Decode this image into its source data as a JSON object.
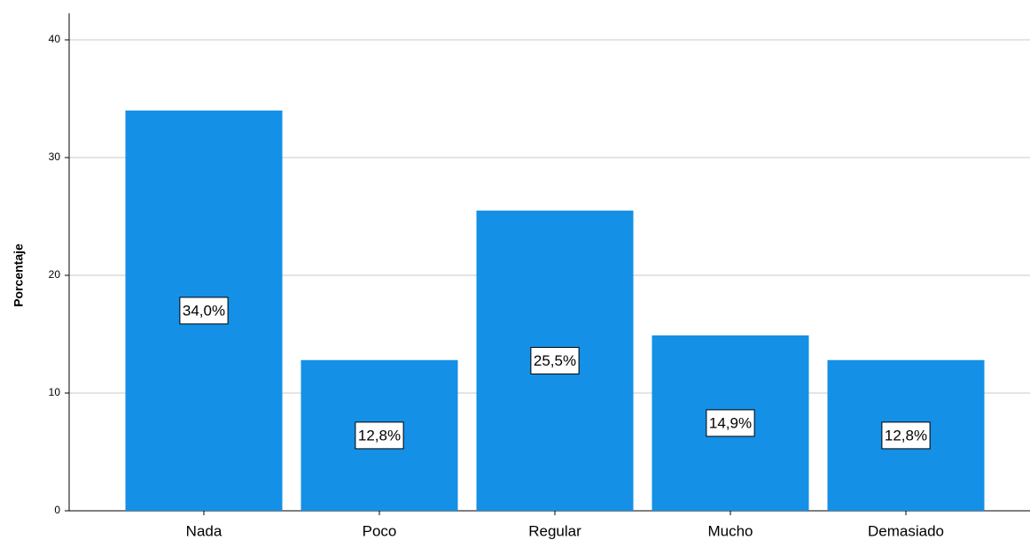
{
  "chart_data": {
    "type": "bar",
    "y_axis_label": "Porcentaje",
    "categories": [
      "Nada",
      "Poco",
      "Regular",
      "Mucho",
      "Demasiado"
    ],
    "values": [
      34.0,
      12.8,
      25.5,
      14.9,
      12.8
    ],
    "value_labels": [
      "34,0%",
      "12,8%",
      "25,5%",
      "14,9%",
      "12,8%"
    ],
    "color": "#1490e6",
    "ylim": [
      0,
      40
    ],
    "yticks": [
      0,
      10,
      20,
      30,
      40
    ],
    "grid": true
  }
}
